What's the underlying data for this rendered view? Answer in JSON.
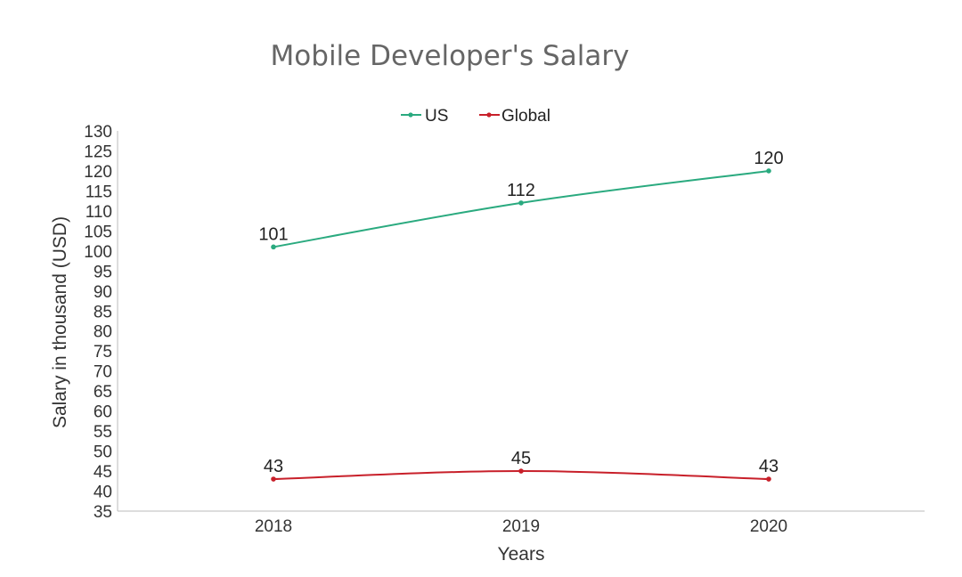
{
  "chart_data": {
    "type": "line",
    "title": "Mobile Developer's Salary",
    "xlabel": "Years",
    "ylabel": "Salary in thousand (USD)",
    "categories": [
      "2018",
      "2019",
      "2020"
    ],
    "ylim": [
      35,
      130
    ],
    "yticks": [
      "35",
      "40",
      "45",
      "50",
      "55",
      "60",
      "65",
      "70",
      "75",
      "80",
      "85",
      "90",
      "95",
      "100",
      "105",
      "110",
      "115",
      "120",
      "125",
      "130"
    ],
    "grid": false,
    "legend": "top-center",
    "series": [
      {
        "name": "US",
        "color": "#2aaa7f",
        "values": [
          101,
          112,
          120
        ],
        "labels": [
          "101",
          "112",
          "120"
        ]
      },
      {
        "name": "Global",
        "color": "#c8202a",
        "values": [
          43,
          45,
          43
        ],
        "labels": [
          "43",
          "45",
          "43"
        ]
      }
    ]
  }
}
